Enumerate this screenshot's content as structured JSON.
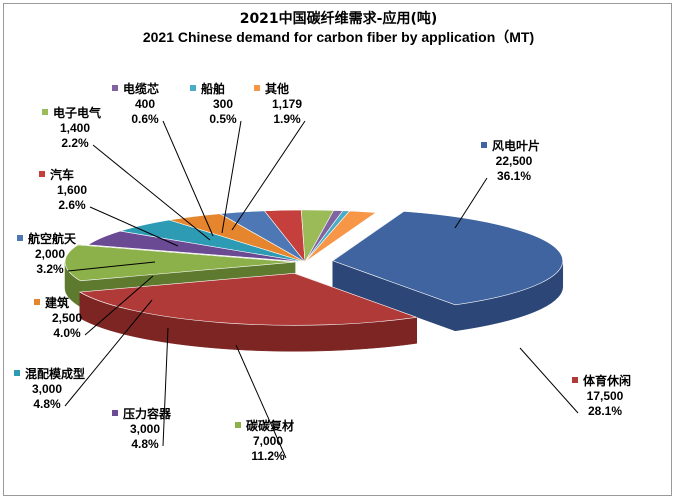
{
  "chart_data": {
    "type": "pie",
    "title": "2021中国碳纤维需求-应用(吨)",
    "subtitle": "2021 Chinese demand for carbon fiber by application（MT)",
    "slices": [
      {
        "label": "风电叶片",
        "value": "22,500",
        "percent": "36.1%",
        "amount": 22500,
        "color": "#3F64A0",
        "dark": "#2B4677"
      },
      {
        "label": "体育休闲",
        "value": "17,500",
        "percent": "28.1%",
        "amount": 17500,
        "color": "#B03A38",
        "dark": "#7C2523"
      },
      {
        "label": "碳碳复材",
        "value": "7,000",
        "percent": "11.2%",
        "amount": 7000,
        "color": "#8CB04A",
        "dark": "#5E7A2E"
      },
      {
        "label": "压力容器",
        "value": "3,000",
        "percent": "4.8%",
        "amount": 3000,
        "color": "#6B4A94",
        "dark": "#483066"
      },
      {
        "label": "混配模成型",
        "value": "3,000",
        "percent": "4.8%",
        "amount": 3000,
        "color": "#2E9BB5",
        "dark": "#1D6A7C"
      },
      {
        "label": "建筑",
        "value": "2,500",
        "percent": "4.0%",
        "amount": 2500,
        "color": "#E5862E",
        "dark": "#A65C1A"
      },
      {
        "label": "航空航天",
        "value": "2,000",
        "percent": "3.2%",
        "amount": 2000,
        "color": "#4D78B5",
        "dark": "#34527F"
      },
      {
        "label": "汽车",
        "value": "1,600",
        "percent": "2.6%",
        "amount": 1600,
        "color": "#C5403C",
        "dark": "#882A27"
      },
      {
        "label": "电子电气",
        "value": "1,400",
        "percent": "2.2%",
        "amount": 1400,
        "color": "#9BBB59",
        "dark": "#6A823A"
      },
      {
        "label": "电缆芯",
        "value": "400",
        "percent": "0.6%",
        "amount": 400,
        "color": "#8064A2",
        "dark": "#574470"
      },
      {
        "label": "船舶",
        "value": "300",
        "percent": "0.5%",
        "amount": 300,
        "color": "#4BACC6",
        "dark": "#317789"
      },
      {
        "label": "其他",
        "value": "1,179",
        "percent": "1.9%",
        "amount": 1179,
        "color": "#F79646",
        "dark": "#B0662A"
      }
    ]
  }
}
